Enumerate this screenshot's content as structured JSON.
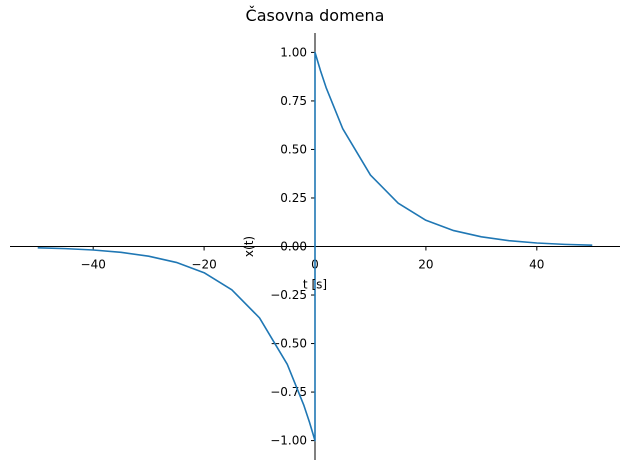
{
  "chart_data": {
    "type": "line",
    "title": "Časovna domena",
    "xlabel": "t [s]",
    "ylabel": "x(t)",
    "xlim": [
      -55,
      55
    ],
    "ylim": [
      -1.1,
      1.1
    ],
    "grid": false,
    "xticks": [
      -40,
      -20,
      0,
      20,
      40
    ],
    "xtick_labels": [
      "−40",
      "−20",
      "0",
      "20",
      "40"
    ],
    "yticks": [
      -1.0,
      -0.75,
      -0.5,
      -0.25,
      0.0,
      0.25,
      0.5,
      0.75,
      1.0
    ],
    "ytick_labels": [
      "−1.00",
      "−0.75",
      "−0.50",
      "−0.25",
      "0.00",
      "0.25",
      "0.50",
      "0.75",
      "1.00"
    ],
    "series": [
      {
        "color": "#1f77b4",
        "x": [
          -50,
          -45,
          -40,
          -35,
          -30,
          -25,
          -20,
          -15,
          -10,
          -5,
          -2,
          -1,
          0,
          0,
          1,
          2,
          5,
          10,
          15,
          20,
          25,
          30,
          35,
          40,
          45,
          50
        ],
        "y": [
          -0.007,
          -0.011,
          -0.018,
          -0.03,
          -0.05,
          -0.082,
          -0.135,
          -0.223,
          -0.368,
          -0.607,
          -0.819,
          -0.905,
          -1.0,
          1.0,
          0.905,
          0.819,
          0.607,
          0.368,
          0.223,
          0.135,
          0.082,
          0.05,
          0.03,
          0.018,
          0.011,
          0.007
        ]
      }
    ]
  }
}
